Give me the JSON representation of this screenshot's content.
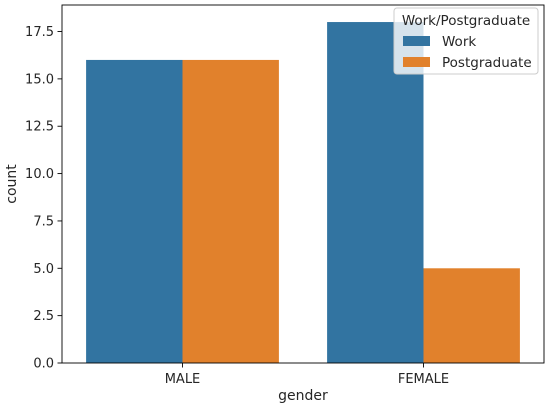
{
  "chart_data": {
    "type": "bar",
    "categories": [
      "MALE",
      "FEMALE"
    ],
    "series": [
      {
        "name": "Work",
        "values": [
          16,
          18
        ]
      },
      {
        "name": "Postgraduate",
        "values": [
          16,
          5
        ]
      }
    ],
    "colors": {
      "Work": "#3274a1",
      "Postgraduate": "#e1812c"
    },
    "xlabel": "gender",
    "ylabel": "count",
    "ylim": [
      0,
      18.9
    ],
    "yticks": [
      0.0,
      2.5,
      5.0,
      7.5,
      10.0,
      12.5,
      15.0,
      17.5
    ],
    "ytick_labels": [
      "0.0",
      "2.5",
      "5.0",
      "7.5",
      "10.0",
      "12.5",
      "15.0",
      "17.5"
    ],
    "legend": {
      "title": "Work/Postgraduate",
      "placement": "top-right"
    },
    "grid": false
  }
}
